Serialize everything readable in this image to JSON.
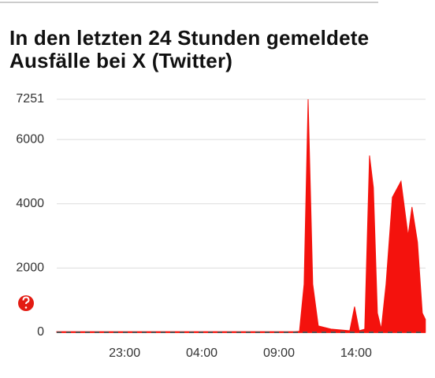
{
  "chart_data": {
    "type": "area",
    "title": "In den letzten 24 Stunden gemeldete Ausfälle bei X (Twitter)",
    "x": [
      18.6,
      20,
      22,
      24,
      26,
      28,
      30,
      32,
      34,
      34.33,
      34.63,
      34.89,
      35.19,
      35.55,
      36.37,
      37.59,
      37.9,
      38.2,
      38.56,
      38.87,
      39.12,
      39.38,
      39.63,
      39.94,
      40.35,
      40.91,
      41.37,
      41.62,
      41.98,
      42.29,
      42.49
    ],
    "values": [
      20,
      20,
      20,
      20,
      20,
      20,
      20,
      20,
      20,
      30,
      1500,
      7251,
      1500,
      200,
      100,
      50,
      800,
      50,
      100,
      5500,
      4500,
      600,
      100,
      1500,
      4200,
      4700,
      3000,
      3900,
      2800,
      600,
      400
    ],
    "color": "#f4120d",
    "xlim": [
      18.6,
      42.5
    ],
    "xticks": [
      {
        "value": 23,
        "label": "23:00"
      },
      {
        "value": 28,
        "label": "04:00"
      },
      {
        "value": 33,
        "label": "09:00"
      },
      {
        "value": 38,
        "label": "14:00"
      }
    ],
    "ylim": [
      0,
      7251
    ],
    "yticks": [
      0,
      2000,
      4000,
      6000,
      7251
    ],
    "grid": true
  }
}
